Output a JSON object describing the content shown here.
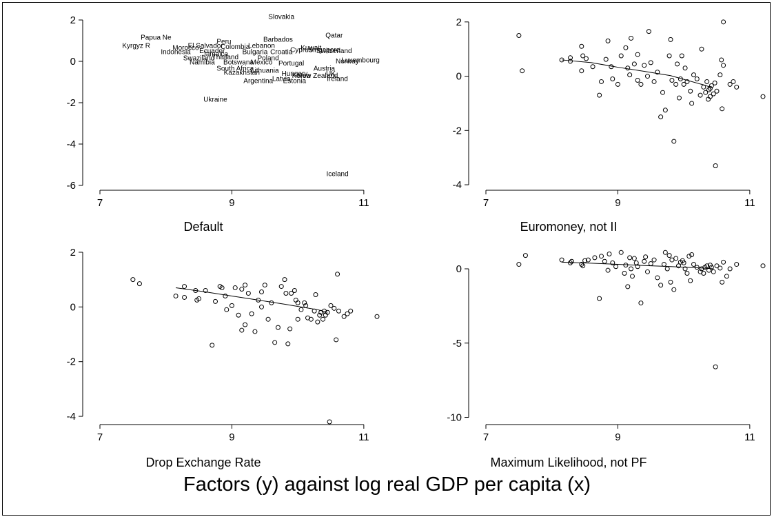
{
  "figure": {
    "title": "Factors (y) against log real GDP per capita (x)"
  },
  "chart_data": [
    {
      "type": "scatter",
      "title": "Default",
      "xlabel": "",
      "ylabel": "",
      "xticks": [
        7,
        9,
        11
      ],
      "yticks": [
        -6,
        -4,
        -2,
        0,
        2
      ],
      "xlim": [
        7,
        11.2
      ],
      "ylim": [
        -6.1,
        2.3
      ],
      "marker": "label",
      "points": [
        {
          "label": "Papua Ne",
          "x": 7.85,
          "y": 1.15
        },
        {
          "label": "Kyrgyz R",
          "x": 7.55,
          "y": 0.75
        },
        {
          "label": "Morocco",
          "x": 8.3,
          "y": 0.65
        },
        {
          "label": "El Salvador",
          "x": 8.6,
          "y": 0.75
        },
        {
          "label": "Indonesia",
          "x": 8.15,
          "y": 0.45
        },
        {
          "label": "Namibia",
          "x": 8.55,
          "y": -0.05
        },
        {
          "label": "Swaziland",
          "x": 8.5,
          "y": 0.15
        },
        {
          "label": "Jamaica",
          "x": 8.75,
          "y": 0.35
        },
        {
          "label": "Thailand",
          "x": 8.9,
          "y": 0.2
        },
        {
          "label": "Peru",
          "x": 8.88,
          "y": 0.95
        },
        {
          "label": "Colombia",
          "x": 9.05,
          "y": 0.7
        },
        {
          "label": "Ecuador",
          "x": 8.7,
          "y": 0.5
        },
        {
          "label": "Slovakia",
          "x": 9.75,
          "y": 2.15
        },
        {
          "label": "Barbados",
          "x": 9.7,
          "y": 1.05
        },
        {
          "label": "Lebanon",
          "x": 9.45,
          "y": 0.75
        },
        {
          "label": "Bulgaria",
          "x": 9.35,
          "y": 0.45
        },
        {
          "label": "Botswana",
          "x": 9.1,
          "y": -0.05
        },
        {
          "label": "Mexico",
          "x": 9.45,
          "y": -0.05
        },
        {
          "label": "Poland",
          "x": 9.55,
          "y": 0.15
        },
        {
          "label": "South Africa",
          "x": 9.05,
          "y": -0.35
        },
        {
          "label": "Kazakhstan",
          "x": 9.15,
          "y": -0.55
        },
        {
          "label": "Lithuania",
          "x": 9.5,
          "y": -0.45
        },
        {
          "label": "Portugal",
          "x": 9.9,
          "y": -0.1
        },
        {
          "label": "Hungary",
          "x": 9.95,
          "y": -0.6
        },
        {
          "label": "Latvia",
          "x": 9.75,
          "y": -0.85
        },
        {
          "label": "Argentina",
          "x": 9.4,
          "y": -0.95
        },
        {
          "label": "Estonia",
          "x": 9.95,
          "y": -0.95
        },
        {
          "label": "Ukraine",
          "x": 8.75,
          "y": -1.85
        },
        {
          "label": "Croatia",
          "x": 9.75,
          "y": 0.45
        },
        {
          "label": "Cyprus",
          "x": 10.05,
          "y": 0.55
        },
        {
          "label": "Kuwait",
          "x": 10.2,
          "y": 0.65
        },
        {
          "label": "Singapore",
          "x": 10.4,
          "y": 0.55
        },
        {
          "label": "Switzerland",
          "x": 10.55,
          "y": 0.5
        },
        {
          "label": "Korea",
          "x": 10.05,
          "y": -0.7
        },
        {
          "label": "New Zealand",
          "x": 10.3,
          "y": -0.7
        },
        {
          "label": "Austria",
          "x": 10.4,
          "y": -0.35
        },
        {
          "label": "UK",
          "x": 10.5,
          "y": -0.6
        },
        {
          "label": "Norway",
          "x": 10.75,
          "y": 0.0
        },
        {
          "label": "Luxembourg",
          "x": 10.95,
          "y": 0.05
        },
        {
          "label": "Qatar",
          "x": 10.55,
          "y": 1.25
        },
        {
          "label": "Ireland",
          "x": 10.6,
          "y": -0.85
        },
        {
          "label": "Iceland",
          "x": 10.6,
          "y": -5.45
        }
      ]
    },
    {
      "type": "scatter",
      "title": "Euromoney, not II",
      "xlabel": "",
      "ylabel": "",
      "xticks": [
        7,
        9,
        11
      ],
      "yticks": [
        -4,
        -2,
        0,
        2
      ],
      "xlim": [
        7,
        11.2
      ],
      "ylim": [
        -4.1,
        2.3
      ],
      "marker": "circle",
      "fit_line": {
        "x": [
          8.15,
          8.6,
          9.0,
          9.4,
          9.8,
          10.05,
          10.3,
          10.4
        ],
        "y": [
          0.6,
          0.5,
          0.33,
          0.18,
          0.02,
          -0.15,
          -0.32,
          -0.4
        ]
      },
      "points": [
        {
          "x": 7.5,
          "y": 1.5
        },
        {
          "x": 7.55,
          "y": 0.2
        },
        {
          "x": 8.15,
          "y": 0.6
        },
        {
          "x": 8.28,
          "y": 0.68
        },
        {
          "x": 8.28,
          "y": 0.55
        },
        {
          "x": 8.45,
          "y": 1.1
        },
        {
          "x": 8.47,
          "y": 0.75
        },
        {
          "x": 8.52,
          "y": 0.65
        },
        {
          "x": 8.45,
          "y": 0.2
        },
        {
          "x": 8.62,
          "y": 0.35
        },
        {
          "x": 8.72,
          "y": -0.7
        },
        {
          "x": 8.75,
          "y": -0.2
        },
        {
          "x": 8.82,
          "y": 0.62
        },
        {
          "x": 8.85,
          "y": 1.3
        },
        {
          "x": 8.9,
          "y": 0.35
        },
        {
          "x": 8.92,
          "y": -0.1
        },
        {
          "x": 9.0,
          "y": -0.3
        },
        {
          "x": 9.05,
          "y": 0.75
        },
        {
          "x": 9.12,
          "y": 1.05
        },
        {
          "x": 9.15,
          "y": 0.3
        },
        {
          "x": 9.2,
          "y": 1.4
        },
        {
          "x": 9.18,
          "y": 0.05
        },
        {
          "x": 9.25,
          "y": 0.45
        },
        {
          "x": 9.3,
          "y": 0.8
        },
        {
          "x": 9.3,
          "y": -0.15
        },
        {
          "x": 9.35,
          "y": -0.3
        },
        {
          "x": 9.4,
          "y": 0.4
        },
        {
          "x": 9.45,
          "y": 0.0
        },
        {
          "x": 9.47,
          "y": 1.65
        },
        {
          "x": 9.5,
          "y": 0.5
        },
        {
          "x": 9.55,
          "y": -0.2
        },
        {
          "x": 9.6,
          "y": 0.15
        },
        {
          "x": 9.65,
          "y": -1.5
        },
        {
          "x": 9.68,
          "y": -0.6
        },
        {
          "x": 9.72,
          "y": -1.25
        },
        {
          "x": 9.78,
          "y": 0.75
        },
        {
          "x": 9.8,
          "y": 1.35
        },
        {
          "x": 9.82,
          "y": -0.15
        },
        {
          "x": 9.85,
          "y": -2.4
        },
        {
          "x": 9.88,
          "y": -0.3
        },
        {
          "x": 9.9,
          "y": 0.45
        },
        {
          "x": 9.93,
          "y": -0.8
        },
        {
          "x": 9.95,
          "y": -0.1
        },
        {
          "x": 9.97,
          "y": 0.75
        },
        {
          "x": 10.0,
          "y": -0.3
        },
        {
          "x": 10.02,
          "y": 0.3
        },
        {
          "x": 10.05,
          "y": -0.2
        },
        {
          "x": 10.1,
          "y": -0.55
        },
        {
          "x": 10.12,
          "y": -1.0
        },
        {
          "x": 10.15,
          "y": 0.05
        },
        {
          "x": 10.2,
          "y": -0.1
        },
        {
          "x": 10.25,
          "y": -0.7
        },
        {
          "x": 10.27,
          "y": 1.0
        },
        {
          "x": 10.3,
          "y": -0.4
        },
        {
          "x": 10.33,
          "y": -0.6
        },
        {
          "x": 10.35,
          "y": -0.2
        },
        {
          "x": 10.37,
          "y": -0.85
        },
        {
          "x": 10.38,
          "y": -0.5
        },
        {
          "x": 10.4,
          "y": -0.45
        },
        {
          "x": 10.4,
          "y": -0.75
        },
        {
          "x": 10.42,
          "y": -0.35
        },
        {
          "x": 10.45,
          "y": -0.65
        },
        {
          "x": 10.47,
          "y": -0.25
        },
        {
          "x": 10.48,
          "y": -3.3
        },
        {
          "x": 10.5,
          "y": -0.55
        },
        {
          "x": 10.55,
          "y": 0.05
        },
        {
          "x": 10.57,
          "y": 0.6
        },
        {
          "x": 10.58,
          "y": -1.2
        },
        {
          "x": 10.6,
          "y": 2.0
        },
        {
          "x": 10.6,
          "y": 0.4
        },
        {
          "x": 10.7,
          "y": -0.3
        },
        {
          "x": 10.75,
          "y": -0.2
        },
        {
          "x": 10.8,
          "y": -0.4
        },
        {
          "x": 11.2,
          "y": -0.75
        }
      ]
    },
    {
      "type": "scatter",
      "title": "Drop Exchange Rate",
      "xlabel": "",
      "ylabel": "",
      "xticks": [
        7,
        9,
        11
      ],
      "yticks": [
        -4,
        -2,
        0,
        2
      ],
      "xlim": [
        7,
        11.2
      ],
      "ylim": [
        -4.2,
        2.1
      ],
      "marker": "circle",
      "fit_line": {
        "x": [
          8.15,
          8.6,
          9.0,
          9.4,
          9.8,
          10.05,
          10.3,
          10.45
        ],
        "y": [
          0.7,
          0.55,
          0.4,
          0.25,
          0.1,
          0.0,
          -0.1,
          -0.2
        ]
      },
      "points": [
        {
          "x": 7.5,
          "y": 1.0
        },
        {
          "x": 7.6,
          "y": 0.85
        },
        {
          "x": 8.15,
          "y": 0.4
        },
        {
          "x": 8.28,
          "y": 0.35
        },
        {
          "x": 8.28,
          "y": 0.75
        },
        {
          "x": 8.45,
          "y": 0.6
        },
        {
          "x": 8.47,
          "y": 0.25
        },
        {
          "x": 8.5,
          "y": 0.3
        },
        {
          "x": 8.6,
          "y": 0.6
        },
        {
          "x": 8.7,
          "y": -1.4
        },
        {
          "x": 8.75,
          "y": 0.2
        },
        {
          "x": 8.82,
          "y": 0.75
        },
        {
          "x": 8.85,
          "y": 0.7
        },
        {
          "x": 8.9,
          "y": 0.4
        },
        {
          "x": 8.92,
          "y": -0.1
        },
        {
          "x": 9.0,
          "y": 0.05
        },
        {
          "x": 9.05,
          "y": 0.7
        },
        {
          "x": 9.1,
          "y": -0.3
        },
        {
          "x": 9.15,
          "y": 0.65
        },
        {
          "x": 9.15,
          "y": -0.85
        },
        {
          "x": 9.2,
          "y": 0.8
        },
        {
          "x": 9.2,
          "y": -0.65
        },
        {
          "x": 9.25,
          "y": 0.5
        },
        {
          "x": 9.3,
          "y": -0.25
        },
        {
          "x": 9.35,
          "y": -0.9
        },
        {
          "x": 9.4,
          "y": 0.25
        },
        {
          "x": 9.45,
          "y": 0.55
        },
        {
          "x": 9.45,
          "y": 0.0
        },
        {
          "x": 9.5,
          "y": 0.8
        },
        {
          "x": 9.55,
          "y": -0.45
        },
        {
          "x": 9.6,
          "y": 0.15
        },
        {
          "x": 9.65,
          "y": -1.3
        },
        {
          "x": 9.7,
          "y": -0.75
        },
        {
          "x": 9.75,
          "y": 0.75
        },
        {
          "x": 9.8,
          "y": 1.0
        },
        {
          "x": 9.82,
          "y": 0.5
        },
        {
          "x": 9.85,
          "y": -1.35
        },
        {
          "x": 9.88,
          "y": -0.8
        },
        {
          "x": 9.9,
          "y": 0.5
        },
        {
          "x": 9.95,
          "y": 0.6
        },
        {
          "x": 9.97,
          "y": 0.25
        },
        {
          "x": 10.0,
          "y": 0.15
        },
        {
          "x": 10.0,
          "y": -0.45
        },
        {
          "x": 10.05,
          "y": -0.1
        },
        {
          "x": 10.1,
          "y": 0.15
        },
        {
          "x": 10.12,
          "y": 0.05
        },
        {
          "x": 10.15,
          "y": -0.4
        },
        {
          "x": 10.2,
          "y": -0.45
        },
        {
          "x": 10.25,
          "y": -0.15
        },
        {
          "x": 10.27,
          "y": 0.45
        },
        {
          "x": 10.3,
          "y": -0.55
        },
        {
          "x": 10.33,
          "y": -0.3
        },
        {
          "x": 10.35,
          "y": -0.2
        },
        {
          "x": 10.38,
          "y": -0.45
        },
        {
          "x": 10.4,
          "y": -0.15
        },
        {
          "x": 10.42,
          "y": -0.3
        },
        {
          "x": 10.45,
          "y": -0.2
        },
        {
          "x": 10.48,
          "y": -4.2
        },
        {
          "x": 10.5,
          "y": 0.05
        },
        {
          "x": 10.55,
          "y": -0.05
        },
        {
          "x": 10.58,
          "y": -1.2
        },
        {
          "x": 10.6,
          "y": 1.2
        },
        {
          "x": 10.62,
          "y": -0.15
        },
        {
          "x": 10.7,
          "y": -0.35
        },
        {
          "x": 10.75,
          "y": -0.25
        },
        {
          "x": 10.8,
          "y": -0.15
        },
        {
          "x": 11.2,
          "y": -0.35
        }
      ]
    },
    {
      "type": "scatter",
      "title": "Maximum Likelihood, not PF",
      "xlabel": "",
      "ylabel": "",
      "xticks": [
        7,
        9,
        11
      ],
      "yticks": [
        -10,
        -5,
        0
      ],
      "xlim": [
        7,
        11.2
      ],
      "ylim": [
        -10.3,
        1.3
      ],
      "marker": "circle",
      "fit_line": {
        "x": [
          8.15,
          8.6,
          9.0,
          9.4,
          9.8,
          10.05,
          10.3,
          10.45
        ],
        "y": [
          0.45,
          0.38,
          0.3,
          0.22,
          0.15,
          0.1,
          0.05,
          0.0
        ]
      },
      "points": [
        {
          "x": 7.5,
          "y": 0.3
        },
        {
          "x": 7.6,
          "y": 0.9
        },
        {
          "x": 8.15,
          "y": 0.6
        },
        {
          "x": 8.28,
          "y": 0.4
        },
        {
          "x": 8.3,
          "y": 0.5
        },
        {
          "x": 8.45,
          "y": 0.3
        },
        {
          "x": 8.47,
          "y": 0.2
        },
        {
          "x": 8.5,
          "y": 0.55
        },
        {
          "x": 8.55,
          "y": 0.6
        },
        {
          "x": 8.65,
          "y": 0.75
        },
        {
          "x": 8.72,
          "y": -2.0
        },
        {
          "x": 8.75,
          "y": 0.85
        },
        {
          "x": 8.8,
          "y": 0.5
        },
        {
          "x": 8.85,
          "y": -0.1
        },
        {
          "x": 8.87,
          "y": 1.0
        },
        {
          "x": 8.92,
          "y": 0.4
        },
        {
          "x": 8.97,
          "y": 0.15
        },
        {
          "x": 9.05,
          "y": 1.1
        },
        {
          "x": 9.1,
          "y": -0.3
        },
        {
          "x": 9.12,
          "y": 0.25
        },
        {
          "x": 9.15,
          "y": -1.2
        },
        {
          "x": 9.18,
          "y": 0.75
        },
        {
          "x": 9.2,
          "y": 0.0
        },
        {
          "x": 9.22,
          "y": -0.5
        },
        {
          "x": 9.25,
          "y": 0.7
        },
        {
          "x": 9.28,
          "y": 0.4
        },
        {
          "x": 9.3,
          "y": 0.15
        },
        {
          "x": 9.35,
          "y": -2.3
        },
        {
          "x": 9.4,
          "y": 0.5
        },
        {
          "x": 9.42,
          "y": 0.8
        },
        {
          "x": 9.45,
          "y": -0.2
        },
        {
          "x": 9.5,
          "y": 0.35
        },
        {
          "x": 9.55,
          "y": 0.6
        },
        {
          "x": 9.6,
          "y": -0.6
        },
        {
          "x": 9.65,
          "y": -1.1
        },
        {
          "x": 9.7,
          "y": 0.3
        },
        {
          "x": 9.72,
          "y": 1.1
        },
        {
          "x": 9.75,
          "y": 0.0
        },
        {
          "x": 9.78,
          "y": 0.9
        },
        {
          "x": 9.8,
          "y": -0.9
        },
        {
          "x": 9.82,
          "y": 0.6
        },
        {
          "x": 9.85,
          "y": -1.4
        },
        {
          "x": 9.88,
          "y": 0.7
        },
        {
          "x": 9.92,
          "y": 0.2
        },
        {
          "x": 9.95,
          "y": 0.45
        },
        {
          "x": 9.98,
          "y": 0.55
        },
        {
          "x": 10.0,
          "y": 0.4
        },
        {
          "x": 10.02,
          "y": 0.0
        },
        {
          "x": 10.05,
          "y": -0.3
        },
        {
          "x": 10.08,
          "y": 0.85
        },
        {
          "x": 10.1,
          "y": -0.8
        },
        {
          "x": 10.12,
          "y": 0.95
        },
        {
          "x": 10.15,
          "y": 0.3
        },
        {
          "x": 10.2,
          "y": 0.1
        },
        {
          "x": 10.25,
          "y": -0.2
        },
        {
          "x": 10.27,
          "y": 0.0
        },
        {
          "x": 10.3,
          "y": -0.3
        },
        {
          "x": 10.32,
          "y": 0.1
        },
        {
          "x": 10.35,
          "y": 0.2
        },
        {
          "x": 10.38,
          "y": -0.1
        },
        {
          "x": 10.4,
          "y": 0.25
        },
        {
          "x": 10.42,
          "y": 0.1
        },
        {
          "x": 10.45,
          "y": -0.2
        },
        {
          "x": 10.48,
          "y": -6.6
        },
        {
          "x": 10.5,
          "y": 0.2
        },
        {
          "x": 10.55,
          "y": 0.05
        },
        {
          "x": 10.58,
          "y": -0.9
        },
        {
          "x": 10.6,
          "y": 0.45
        },
        {
          "x": 10.65,
          "y": -0.5
        },
        {
          "x": 10.7,
          "y": 0.0
        },
        {
          "x": 10.8,
          "y": 0.3
        },
        {
          "x": 11.2,
          "y": 0.2
        }
      ]
    }
  ]
}
